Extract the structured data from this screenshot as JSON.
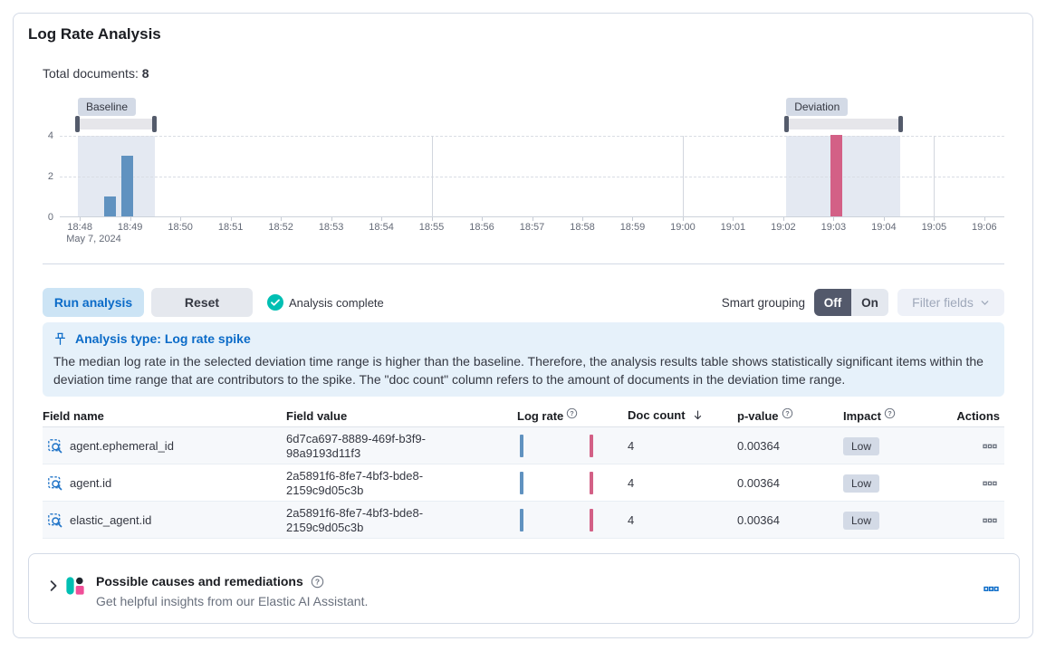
{
  "header": {
    "title": "Log Rate Analysis",
    "total_docs_label": "Total documents:",
    "total_docs_value": "8"
  },
  "chart_data": {
    "type": "bar",
    "title": "",
    "xlabel": "",
    "ylabel": "",
    "ylim": [
      0,
      4
    ],
    "y_ticks": [
      0,
      2,
      4
    ],
    "x_tick_labels": [
      "18:48",
      "18:49",
      "18:50",
      "18:51",
      "18:52",
      "18:53",
      "18:54",
      "18:55",
      "18:56",
      "18:57",
      "18:58",
      "18:59",
      "19:00",
      "19:01",
      "19:02",
      "19:03",
      "19:04",
      "19:05",
      "19:06"
    ],
    "x_date_label": "May 7, 2024",
    "x_domain": [
      -0.4,
      18.4
    ],
    "major_gridline_x": [
      7,
      12,
      17
    ],
    "grid": "dashed-horizontal",
    "legend": "none",
    "series": [
      {
        "name": "baseline doc count",
        "color": "#6092c0",
        "points": [
          {
            "x": 0.6,
            "y": 1
          },
          {
            "x": 0.95,
            "y": 3
          }
        ]
      },
      {
        "name": "deviation doc count",
        "color": "#d36086",
        "points": [
          {
            "x": 15.05,
            "y": 4
          }
        ]
      }
    ],
    "annotations": {
      "baseline": {
        "label": "Baseline",
        "from": -0.04,
        "to": 1.49
      },
      "deviation": {
        "label": "Deviation",
        "from": 14.06,
        "to": 16.33
      }
    }
  },
  "toolbar": {
    "run_button": "Run analysis",
    "reset_button": "Reset",
    "status": "Analysis complete",
    "smart_grouping_label": "Smart grouping",
    "toggle_off": "Off",
    "toggle_on": "On",
    "filter_fields": "Filter fields"
  },
  "callout": {
    "title": "Analysis type: Log rate spike",
    "body": "The median log rate in the selected deviation time range is higher than the baseline. Therefore, the analysis results table shows statistically significant items within the deviation time range that are contributors to the spike. The \"doc count\" column refers to the amount of documents in the deviation time range."
  },
  "table": {
    "columns": [
      "Field name",
      "Field value",
      "Log rate",
      "Doc count",
      "p-value",
      "Impact",
      "Actions"
    ],
    "info_columns": [
      "Log rate",
      "p-value",
      "Impact"
    ],
    "sorted_column": "Doc count",
    "sort_direction": "desc",
    "rows": [
      {
        "field_name": "agent.ephemeral_id",
        "field_value": "6d7ca697-8889-469f-b3f9-98a9193d11f3",
        "doc_count": "4",
        "p_value": "0.00364",
        "impact": "Low"
      },
      {
        "field_name": "agent.id",
        "field_value": "2a5891f6-8fe7-4bf3-bde8-2159c9d05c3b",
        "doc_count": "4",
        "p_value": "0.00364",
        "impact": "Low"
      },
      {
        "field_name": "elastic_agent.id",
        "field_value": "2a5891f6-8fe7-4bf3-bde8-2159c9d05c3b",
        "doc_count": "4",
        "p_value": "0.00364",
        "impact": "Low"
      }
    ]
  },
  "insights_panel": {
    "title": "Possible causes and remediations",
    "subtitle": "Get helpful insights from our Elastic AI Assistant."
  },
  "colors": {
    "accent_blue": "#0b6bc8",
    "baseline_bar": "#6092c0",
    "deviation_bar": "#d36086",
    "success_teal": "#00bfb3",
    "badge_gray": "#d3dae6"
  }
}
